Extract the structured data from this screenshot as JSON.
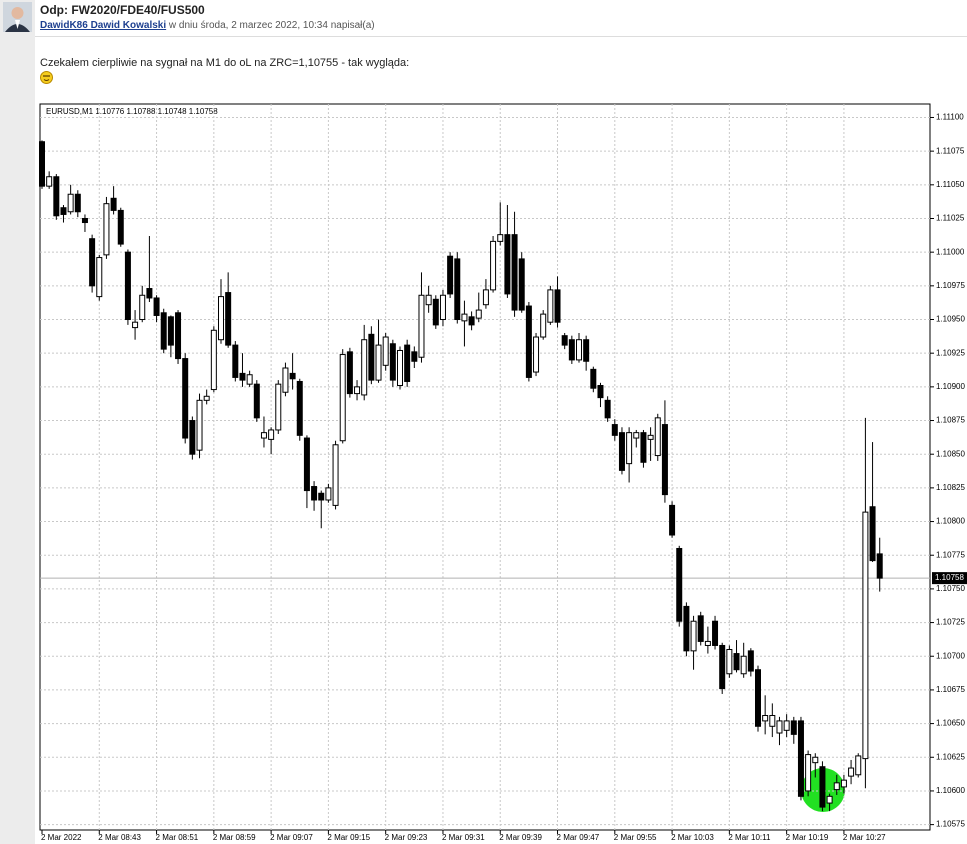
{
  "post": {
    "title": "Odp: FW2020/FDE40/FUS500",
    "author": "DawidK86 Dawid Kowalski",
    "meta": " w dniu środa, 2 marzec 2022, 10:34 napisał(a)",
    "text": "Czekałem cierpliwie na sygnał na M1 do oL na ZRC=1,10755 - tak wygląda:"
  },
  "chart_data": {
    "type": "candlestick",
    "title": "EURUSD,M1  1.10776 1.10788 1.10748 1.10758",
    "categories": [
      "2 Mar 2022",
      null,
      null,
      null,
      null,
      null,
      null,
      null,
      "2 Mar 08:43",
      null,
      null,
      null,
      null,
      null,
      null,
      null,
      "2 Mar 08:51",
      null,
      null,
      null,
      null,
      null,
      null,
      null,
      "2 Mar 08:59",
      null,
      null,
      null,
      null,
      null,
      null,
      null,
      "2 Mar 09:07",
      null,
      null,
      null,
      null,
      null,
      null,
      null,
      "2 Mar 09:15",
      null,
      null,
      null,
      null,
      null,
      null,
      null,
      "2 Mar 09:23",
      null,
      null,
      null,
      null,
      null,
      null,
      null,
      "2 Mar 09:31",
      null,
      null,
      null,
      null,
      null,
      null,
      null,
      "2 Mar 09:39",
      null,
      null,
      null,
      null,
      null,
      null,
      null,
      "2 Mar 09:47",
      null,
      null,
      null,
      null,
      null,
      null,
      null,
      "2 Mar 09:55",
      null,
      null,
      null,
      null,
      null,
      null,
      null,
      "2 Mar 10:03",
      null,
      null,
      null,
      null,
      null,
      null,
      null,
      "2 Mar 10:11",
      null,
      null,
      null,
      null,
      null,
      null,
      null,
      "2 Mar 10:19",
      null,
      null,
      null,
      null,
      null,
      null,
      null,
      "2 Mar 10:27",
      null,
      null,
      null,
      null,
      null
    ],
    "open": [
      1.11082,
      1.11049,
      1.11056,
      1.11033,
      1.1103,
      1.11043,
      1.11025,
      1.1101,
      1.10967,
      1.10998,
      1.1104,
      1.11031,
      1.11,
      1.10944,
      1.1095,
      1.10973,
      1.10966,
      1.10955,
      1.10952,
      1.10955,
      1.10921,
      1.10875,
      1.10853,
      1.1089,
      1.10898,
      1.10935,
      1.1097,
      1.10931,
      1.1091,
      1.10902,
      1.10902,
      1.10862,
      1.10861,
      1.10868,
      1.10896,
      1.1091,
      1.10904,
      1.10862,
      1.10826,
      1.10821,
      1.10816,
      1.10812,
      1.1086,
      1.10926,
      1.10895,
      1.10894,
      1.10939,
      1.10905,
      1.10916,
      1.10932,
      1.10901,
      1.10931,
      1.10926,
      1.10922,
      1.10961,
      1.10965,
      1.1095,
      1.10997,
      1.10995,
      1.10949,
      1.10952,
      1.10951,
      1.10961,
      1.10972,
      1.11008,
      1.11013,
      1.11013,
      1.10995,
      1.1096,
      1.10911,
      1.10937,
      1.10948,
      1.10972,
      1.10938,
      1.10935,
      1.1092,
      1.10935,
      1.10913,
      1.10901,
      1.1089,
      1.10872,
      1.10866,
      1.10843,
      1.10862,
      1.10866,
      1.10861,
      1.10849,
      1.10872,
      1.10812,
      1.1078,
      1.10737,
      1.10704,
      1.1073,
      1.10708,
      1.10726,
      1.10708,
      1.10687,
      1.10702,
      1.10687,
      1.10704,
      1.1069,
      1.10652,
      1.10648,
      1.10643,
      1.10645,
      1.10652,
      1.10652,
      1.106,
      1.10621,
      1.10618,
      1.10591,
      1.10601,
      1.10603,
      1.10611,
      1.10612,
      1.10624,
      1.10811,
      1.10776
    ],
    "high": [
      1.11083,
      1.1106,
      1.11058,
      1.11035,
      1.1105,
      1.11046,
      1.11028,
      1.11013,
      1.10998,
      1.11041,
      1.11049,
      1.11033,
      1.11002,
      1.10957,
      1.10975,
      1.11012,
      1.10968,
      1.10958,
      1.10953,
      1.10957,
      1.10925,
      1.10878,
      1.10895,
      1.10898,
      1.10945,
      1.1098,
      1.10985,
      1.10934,
      1.10925,
      1.10912,
      1.10905,
      1.10878,
      1.1087,
      1.10905,
      1.10918,
      1.10925,
      1.10906,
      1.10864,
      1.1083,
      1.10823,
      1.10828,
      1.1086,
      1.10928,
      1.10929,
      1.10905,
      1.10946,
      1.10945,
      1.1095,
      1.1094,
      1.10935,
      1.1093,
      1.10935,
      1.1093,
      1.10985,
      1.10975,
      1.10968,
      1.10972,
      1.11,
      1.11,
      1.10964,
      1.10956,
      1.1097,
      1.1098,
      1.11012,
      1.11037,
      1.11035,
      1.1103,
      1.11,
      1.10963,
      1.1094,
      1.10957,
      1.10975,
      1.10982,
      1.1094,
      1.10938,
      1.1094,
      1.10938,
      1.10915,
      1.10903,
      1.10893,
      1.10876,
      1.1087,
      1.1087,
      1.10868,
      1.10868,
      1.1087,
      1.1088,
      1.1089,
      1.10815,
      1.10782,
      1.1074,
      1.1073,
      1.10733,
      1.10722,
      1.1073,
      1.1071,
      1.10708,
      1.10712,
      1.1071,
      1.10706,
      1.10693,
      1.10671,
      1.10665,
      1.10655,
      1.10657,
      1.10655,
      1.10655,
      1.1063,
      1.10628,
      1.10622,
      1.10598,
      1.10612,
      1.10612,
      1.10623,
      1.10628,
      1.10877,
      1.10859,
      1.10788
    ],
    "low": [
      1.11047,
      1.11047,
      1.11024,
      1.11022,
      1.11028,
      1.11026,
      1.11015,
      1.1097,
      1.10964,
      1.10995,
      1.11028,
      1.11004,
      1.10946,
      1.10935,
      1.10948,
      1.10963,
      1.10948,
      1.10925,
      1.10922,
      1.10917,
      1.10858,
      1.10846,
      1.10847,
      1.10887,
      1.10896,
      1.10932,
      1.10929,
      1.10904,
      1.109,
      1.109,
      1.10874,
      1.10855,
      1.1085,
      1.10865,
      1.10893,
      1.10898,
      1.1086,
      1.1081,
      1.10808,
      1.10795,
      1.10814,
      1.10809,
      1.10858,
      1.10892,
      1.1089,
      1.1089,
      1.10902,
      1.10903,
      1.10912,
      1.109,
      1.10898,
      1.109,
      1.10914,
      1.10918,
      1.10955,
      1.10943,
      1.10945,
      1.10966,
      1.10947,
      1.1093,
      1.10942,
      1.10948,
      1.10958,
      1.1097,
      1.11005,
      1.10966,
      1.10952,
      1.10955,
      1.10904,
      1.10908,
      1.10935,
      1.10946,
      1.10944,
      1.10928,
      1.10917,
      1.10918,
      1.10912,
      1.10896,
      1.10885,
      1.10874,
      1.1086,
      1.10835,
      1.10829,
      1.10855,
      1.1084,
      1.10845,
      1.10845,
      1.10814,
      1.10788,
      1.10722,
      1.107,
      1.1069,
      1.10708,
      1.10702,
      1.10705,
      1.10672,
      1.10684,
      1.10688,
      1.10684,
      1.10685,
      1.10644,
      1.10642,
      1.1064,
      1.10634,
      1.1064,
      1.10635,
      1.10593,
      1.10596,
      1.1061,
      1.10585,
      1.10585,
      1.10597,
      1.10598,
      1.10605,
      1.1061,
      1.10602,
      1.1077,
      1.10748
    ],
    "close": [
      1.11049,
      1.11056,
      1.11027,
      1.11028,
      1.11043,
      1.1103,
      1.11022,
      1.10975,
      1.10996,
      1.11036,
      1.11031,
      1.11006,
      1.1095,
      1.10948,
      1.10968,
      1.10966,
      1.10953,
      1.10928,
      1.10931,
      1.10921,
      1.10862,
      1.1085,
      1.1089,
      1.10893,
      1.10942,
      1.10967,
      1.10931,
      1.10907,
      1.10905,
      1.10909,
      1.10877,
      1.10866,
      1.10868,
      1.10902,
      1.10914,
      1.10906,
      1.10864,
      1.10823,
      1.10816,
      1.10816,
      1.10825,
      1.10857,
      1.10924,
      1.10895,
      1.109,
      1.10935,
      1.10905,
      1.10931,
      1.10937,
      1.10905,
      1.10927,
      1.10904,
      1.10919,
      1.10968,
      1.10968,
      1.10946,
      1.10968,
      1.10969,
      1.1095,
      1.10954,
      1.10946,
      1.10957,
      1.10972,
      1.11008,
      1.11013,
      1.10969,
      1.10957,
      1.10957,
      1.10907,
      1.10937,
      1.10954,
      1.10972,
      1.10948,
      1.10931,
      1.1092,
      1.10935,
      1.10919,
      1.10899,
      1.10892,
      1.10877,
      1.10864,
      1.10838,
      1.10866,
      1.10866,
      1.10844,
      1.10864,
      1.10877,
      1.1082,
      1.1079,
      1.10726,
      1.10704,
      1.10726,
      1.10711,
      1.10711,
      1.10708,
      1.10676,
      1.10705,
      1.1069,
      1.107,
      1.10689,
      1.10648,
      1.10656,
      1.10656,
      1.10652,
      1.10652,
      1.10642,
      1.10596,
      1.10627,
      1.10625,
      1.10588,
      1.10596,
      1.10606,
      1.10608,
      1.10617,
      1.10626,
      1.10807,
      1.10771,
      1.10758
    ],
    "up_color": "#ffffff",
    "down_color": "#000000",
    "last_price": 1.10758,
    "ylim": [
      1.10571,
      1.1111
    ],
    "yticks": [
      {
        "value": 1.106,
        "label": "1.10600"
      },
      1.10575,
      1.10625,
      {
        "value": 1.1065,
        "label": "1.10650"
      },
      1.10675,
      {
        "value": 1.107,
        "label": "1.10700"
      },
      1.10725,
      {
        "value": 1.1075,
        "label": "1.10750"
      },
      1.10775,
      {
        "value": 1.108,
        "label": "1.10800"
      },
      1.10825,
      {
        "value": 1.1085,
        "label": "1.10850"
      },
      1.10875,
      {
        "value": 1.109,
        "label": "1.10900"
      },
      1.10925,
      {
        "value": 1.1095,
        "label": "1.10950"
      },
      1.10975,
      {
        "value": 1.11,
        "label": "1.11000"
      },
      1.11025,
      {
        "value": 1.1105,
        "label": "1.11050"
      },
      1.11075,
      {
        "value": 1.111,
        "label": "1.11100"
      }
    ],
    "grid": true
  }
}
